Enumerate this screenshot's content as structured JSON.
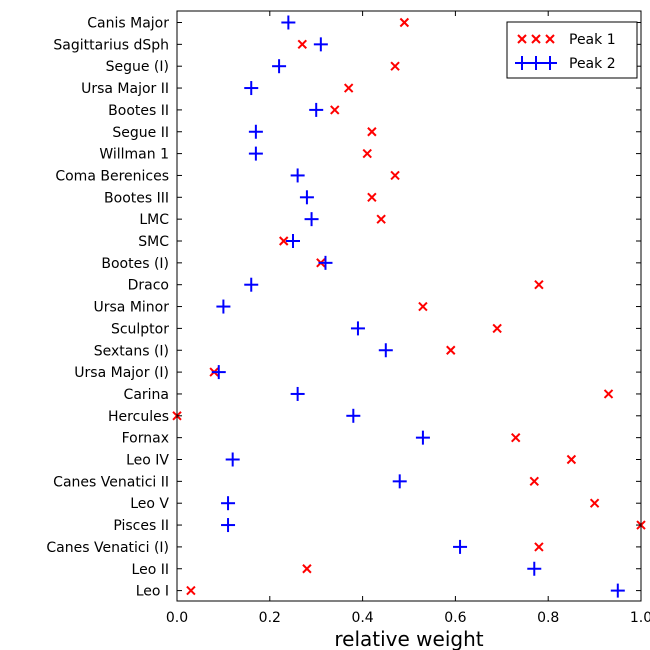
{
  "chart_data": {
    "type": "scatter",
    "title": "",
    "xlabel": "relative weight",
    "ylabel": "",
    "xlim": [
      0.0,
      1.0
    ],
    "x_ticks": [
      "0.0",
      "0.2",
      "0.4",
      "0.6",
      "0.8",
      "1.0"
    ],
    "grid": false,
    "legend_position": "top-right",
    "categories": [
      "Canis Major",
      "Sagittarius dSph",
      "Segue (I)",
      "Ursa Major II",
      "Bootes II",
      "Segue II",
      "Willman 1",
      "Coma Berenices",
      "Bootes III",
      "LMC",
      "SMC",
      "Bootes (I)",
      "Draco",
      "Ursa Minor",
      "Sculptor",
      "Sextans (I)",
      "Ursa Major (I)",
      "Carina",
      "Hercules",
      "Fornax",
      "Leo IV",
      "Canes Venatici II",
      "Leo V",
      "Pisces II",
      "Canes Venatici (I)",
      "Leo II",
      "Leo I"
    ],
    "series": [
      {
        "name": "Peak 1",
        "marker": "x",
        "color": "#ff0000",
        "values": [
          0.49,
          0.27,
          0.47,
          0.37,
          0.34,
          0.42,
          0.41,
          0.47,
          0.42,
          0.44,
          0.23,
          0.31,
          0.78,
          0.53,
          0.69,
          0.59,
          0.08,
          0.93,
          0.0,
          0.73,
          0.85,
          0.77,
          0.9,
          1.0,
          0.78,
          0.28,
          0.03
        ]
      },
      {
        "name": "Peak 2",
        "marker": "+",
        "color": "#0000ff",
        "values": [
          0.24,
          0.31,
          0.22,
          0.16,
          0.3,
          0.17,
          0.17,
          0.26,
          0.28,
          0.29,
          0.25,
          0.32,
          0.16,
          0.1,
          0.39,
          0.45,
          0.09,
          0.26,
          0.38,
          0.53,
          0.12,
          0.48,
          0.11,
          0.11,
          0.61,
          0.77,
          0.95
        ]
      }
    ]
  }
}
